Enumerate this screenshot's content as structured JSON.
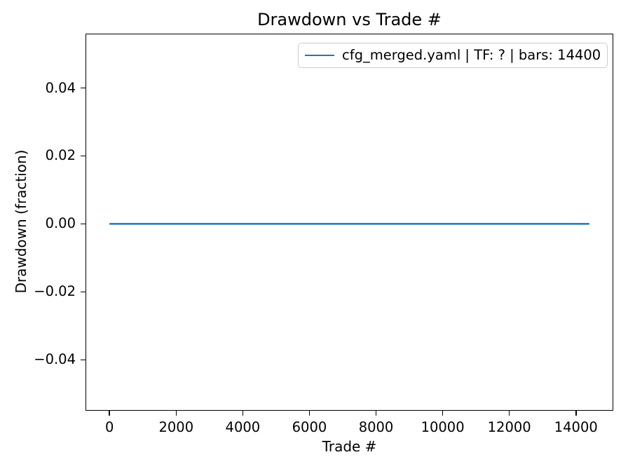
{
  "chart_data": {
    "type": "line",
    "title": "Drawdown vs Trade #",
    "xlabel": "Trade #",
    "ylabel": "Drawdown (fraction)",
    "xlim": [
      -720,
      15120
    ],
    "ylim": [
      -0.055,
      0.056
    ],
    "xticks": [
      0,
      2000,
      4000,
      6000,
      8000,
      10000,
      12000,
      14000
    ],
    "xtick_labels": [
      "0",
      "2000",
      "4000",
      "6000",
      "8000",
      "10000",
      "12000",
      "14000"
    ],
    "yticks": [
      -0.04,
      -0.02,
      0,
      0.02,
      0.04
    ],
    "ytick_labels": [
      "−0.04",
      "−0.02",
      "0.00",
      "0.02",
      "0.04"
    ],
    "grid": false,
    "legend": {
      "position": "upper right",
      "entries": [
        {
          "label": "cfg_merged.yaml | TF: ? | bars: 14400",
          "color": "#1f77b4"
        }
      ]
    },
    "series": [
      {
        "name": "cfg_merged.yaml | TF: ? | bars: 14400",
        "color": "#1f77b4",
        "x": [
          0,
          14400
        ],
        "y": [
          0,
          0
        ]
      }
    ],
    "colors": {
      "line": "#1f77b4",
      "text": "#000000",
      "spine": "#000000",
      "legend_border": "#cccccc",
      "background": "#ffffff"
    }
  }
}
